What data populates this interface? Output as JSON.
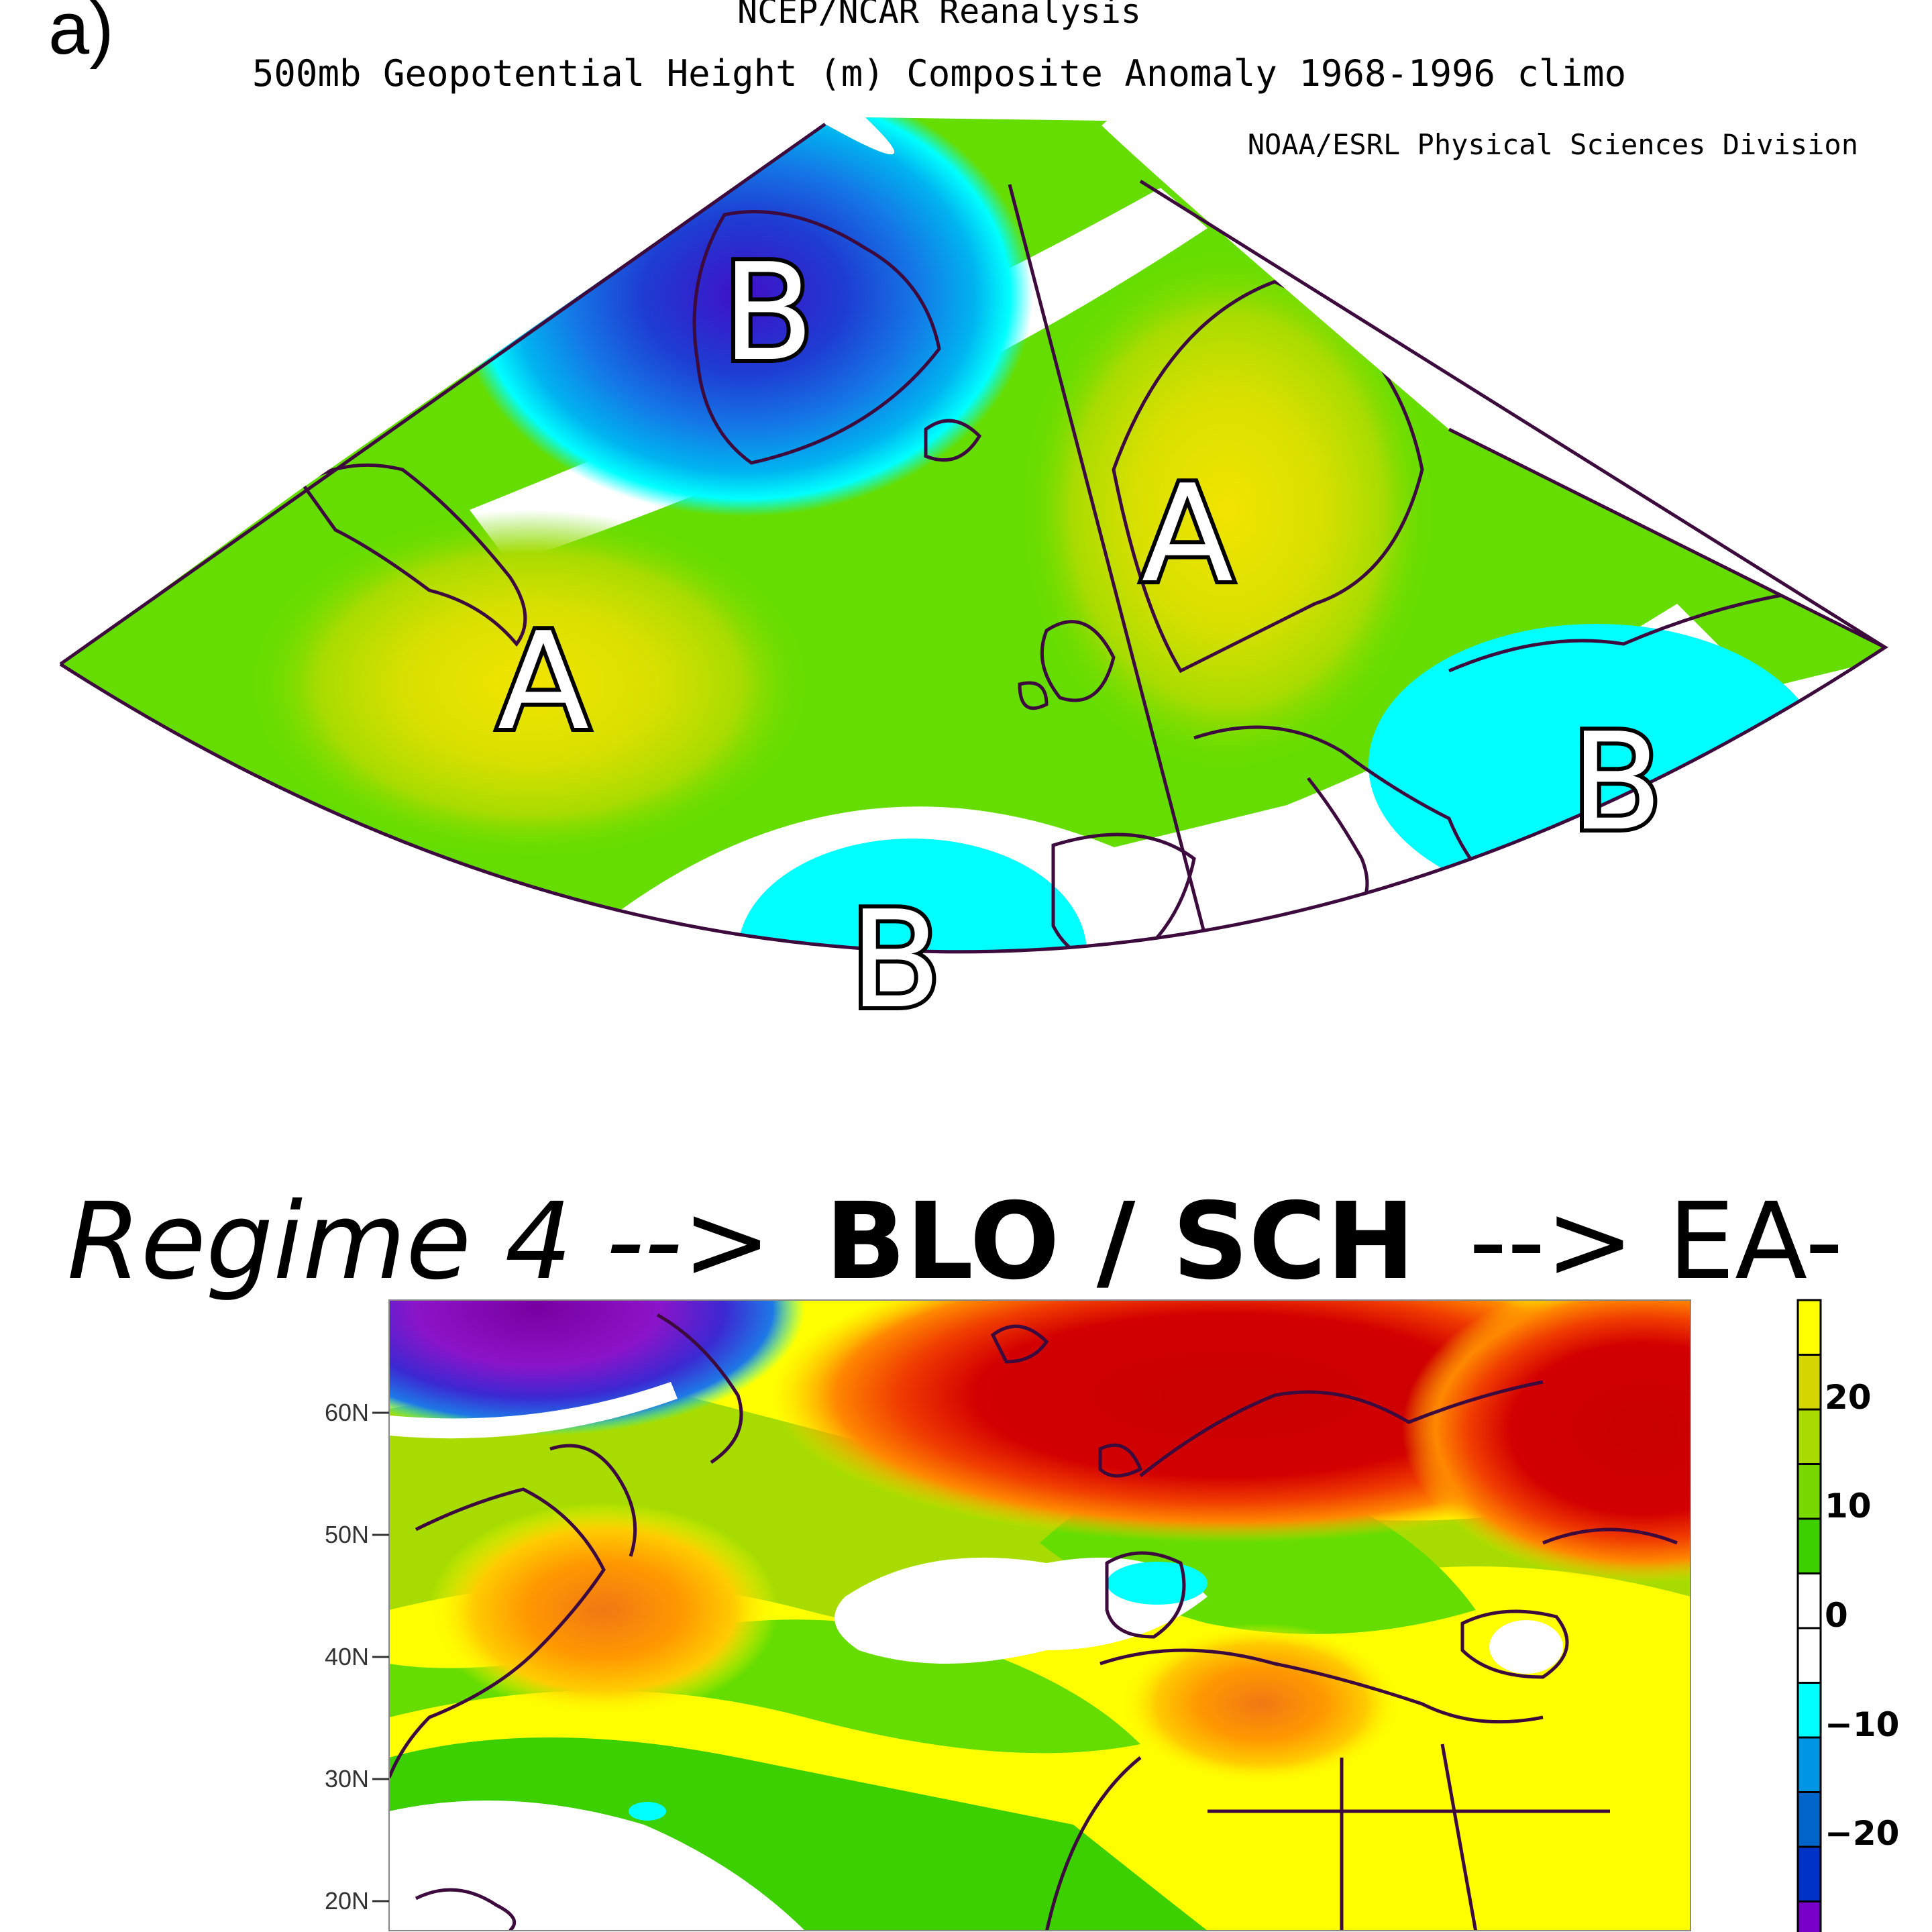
{
  "top_panel": {
    "panel_letter": "a)",
    "header_line": "NCEP/NCAR Reanalysis",
    "title": "500mb Geopotential Height (m) Composite Anomaly 1968-1996 climo",
    "credit": "NOAA/ESRL Physical Sciences Division",
    "labels": [
      {
        "id": "b-greenland",
        "text": "B"
      },
      {
        "id": "a-west-atlantic",
        "text": "A"
      },
      {
        "id": "a-scandinavia",
        "text": "A"
      },
      {
        "id": "b-mid-atlantic",
        "text": "B"
      },
      {
        "id": "b-east-med",
        "text": "B"
      }
    ]
  },
  "heading": {
    "part1": "Regime 4 -->",
    "part2": "BLO / SCH",
    "part3": "--> EA-"
  },
  "bottom_panel": {
    "lat_labels": [
      "60N",
      "50N",
      "40N",
      "30N",
      "20N"
    ],
    "colorbar_labels": [
      "20",
      "10",
      "0",
      "−10",
      "−20"
    ],
    "colorbar_colors": [
      "#ffff00",
      "#d4d400",
      "#a8dc00",
      "#78d800",
      "#3cd000",
      "#ffffff",
      "#ffffff",
      "#00ffff",
      "#0096e6",
      "#0064c8",
      "#0032c8",
      "#7800c8"
    ]
  },
  "colors": {
    "coast": "#3c0a3c",
    "green": "#66dd00",
    "light_green": "#a0dd22",
    "yellow": "#e8e800",
    "cyan": "#00ffff",
    "blue": "#1464dc",
    "dark_blue": "#3c14c8",
    "red": "#d20000",
    "orange": "#ff8800"
  }
}
